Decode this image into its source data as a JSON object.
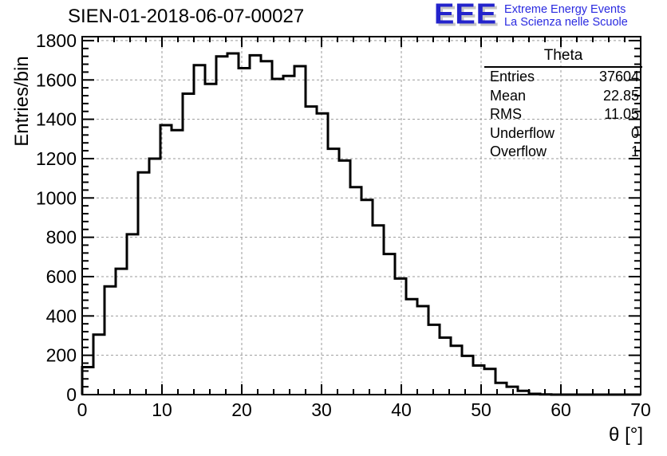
{
  "header": {
    "title": "SIEN-01-2018-06-07-00027",
    "logo": {
      "acronym": "EEE",
      "line1": "Extreme Energy Events",
      "line2": "La Scienza nelle Scuole",
      "blue": "#2323cc",
      "text_blue": "#2a2ae0",
      "shadow_gray": "#c6c6c6"
    }
  },
  "stats_box": {
    "title": "Theta",
    "rows": [
      {
        "label": "Entries",
        "value": "37604"
      },
      {
        "label": "Mean",
        "value": "22.85"
      },
      {
        "label": "RMS",
        "value": "11.05"
      },
      {
        "label": "Underflow",
        "value": "0"
      },
      {
        "label": "Overflow",
        "value": "1"
      }
    ]
  },
  "chart_data": {
    "type": "bar",
    "style": "root-step-histogram",
    "title": "SIEN-01-2018-06-07-00027",
    "xlabel": "θ [°]",
    "ylabel": "Entries/bin",
    "xlim": [
      0,
      70
    ],
    "ylim": [
      0,
      1820
    ],
    "x_major_ticks": [
      0,
      10,
      20,
      30,
      40,
      50,
      60,
      70
    ],
    "x_minor_step": 2,
    "y_major_ticks": [
      0,
      200,
      400,
      600,
      800,
      1000,
      1200,
      1400,
      1600,
      1800
    ],
    "y_minor_step": 40,
    "grid": true,
    "legend_position": "none",
    "bin_start": 0,
    "bin_width": 1.4,
    "values": [
      140,
      305,
      550,
      640,
      815,
      1130,
      1200,
      1370,
      1345,
      1530,
      1675,
      1580,
      1720,
      1735,
      1660,
      1725,
      1695,
      1605,
      1620,
      1670,
      1465,
      1430,
      1250,
      1190,
      1055,
      990,
      860,
      715,
      590,
      485,
      450,
      355,
      290,
      248,
      197,
      148,
      131,
      60,
      40,
      19,
      4,
      1,
      0,
      0,
      0,
      0,
      0,
      0,
      0,
      0
    ],
    "line_color": "#000000",
    "grid_color": "#9a9a9a",
    "frame_color": "#000000"
  }
}
